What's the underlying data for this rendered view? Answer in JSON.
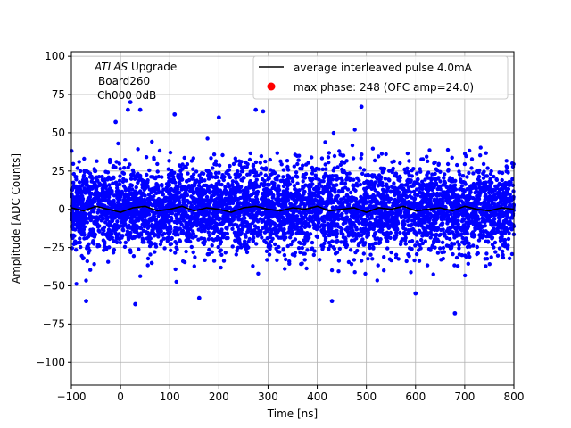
{
  "chart_data": {
    "type": "scatter",
    "title": "",
    "xlabel": "Time [ns]",
    "ylabel": "Amplitude [ADC Counts]",
    "xlim": [
      -100,
      800
    ],
    "ylim": [
      -115,
      103
    ],
    "xticks": [
      -100,
      0,
      100,
      200,
      300,
      400,
      500,
      600,
      700,
      800
    ],
    "yticks": [
      -100,
      -75,
      -50,
      -25,
      0,
      25,
      50,
      75,
      100
    ],
    "grid": true,
    "legend_placement": "top-right",
    "annotation": {
      "line1_italic": "ATLAS",
      "line1_rest": " Upgrade",
      "line2": "Board260",
      "line3": "Ch000 0dB"
    },
    "series": [
      {
        "name": "average interleaved pulse 4.0mA",
        "kind": "line",
        "color": "#000000",
        "x": [
          -100,
          -75,
          -50,
          -25,
          0,
          25,
          50,
          75,
          100,
          125,
          150,
          175,
          200,
          225,
          250,
          275,
          300,
          325,
          350,
          375,
          400,
          425,
          450,
          475,
          500,
          525,
          550,
          575,
          600,
          625,
          650,
          675,
          700,
          725,
          750,
          775,
          800
        ],
        "y": [
          1,
          -1,
          2,
          0,
          -2,
          1,
          2,
          -1,
          0,
          2,
          -1,
          1,
          0,
          -2,
          1,
          2,
          0,
          -1,
          1,
          0,
          2,
          -1,
          0,
          1,
          -2,
          1,
          0,
          2,
          -1,
          0,
          1,
          -1,
          2,
          0,
          -1,
          1,
          0
        ]
      },
      {
        "name": "max phase: 248 (OFC amp=24.0)",
        "kind": "marker",
        "color": "#ff0000",
        "x": [],
        "y": []
      },
      {
        "name": "",
        "kind": "scatter",
        "color": "#0000ff",
        "note_points": "dense noise band around 0 from -100 to 800 ns",
        "outliers": {
          "x": [
            -10,
            15,
            20,
            40,
            110,
            200,
            275,
            290,
            490,
            -70,
            30,
            160,
            430,
            680,
            600
          ],
          "y": [
            57,
            65,
            70,
            65,
            62,
            60,
            65,
            64,
            67,
            -60,
            -62,
            -58,
            -60,
            -68,
            -55
          ]
        },
        "band_sigma": 14
      }
    ]
  }
}
